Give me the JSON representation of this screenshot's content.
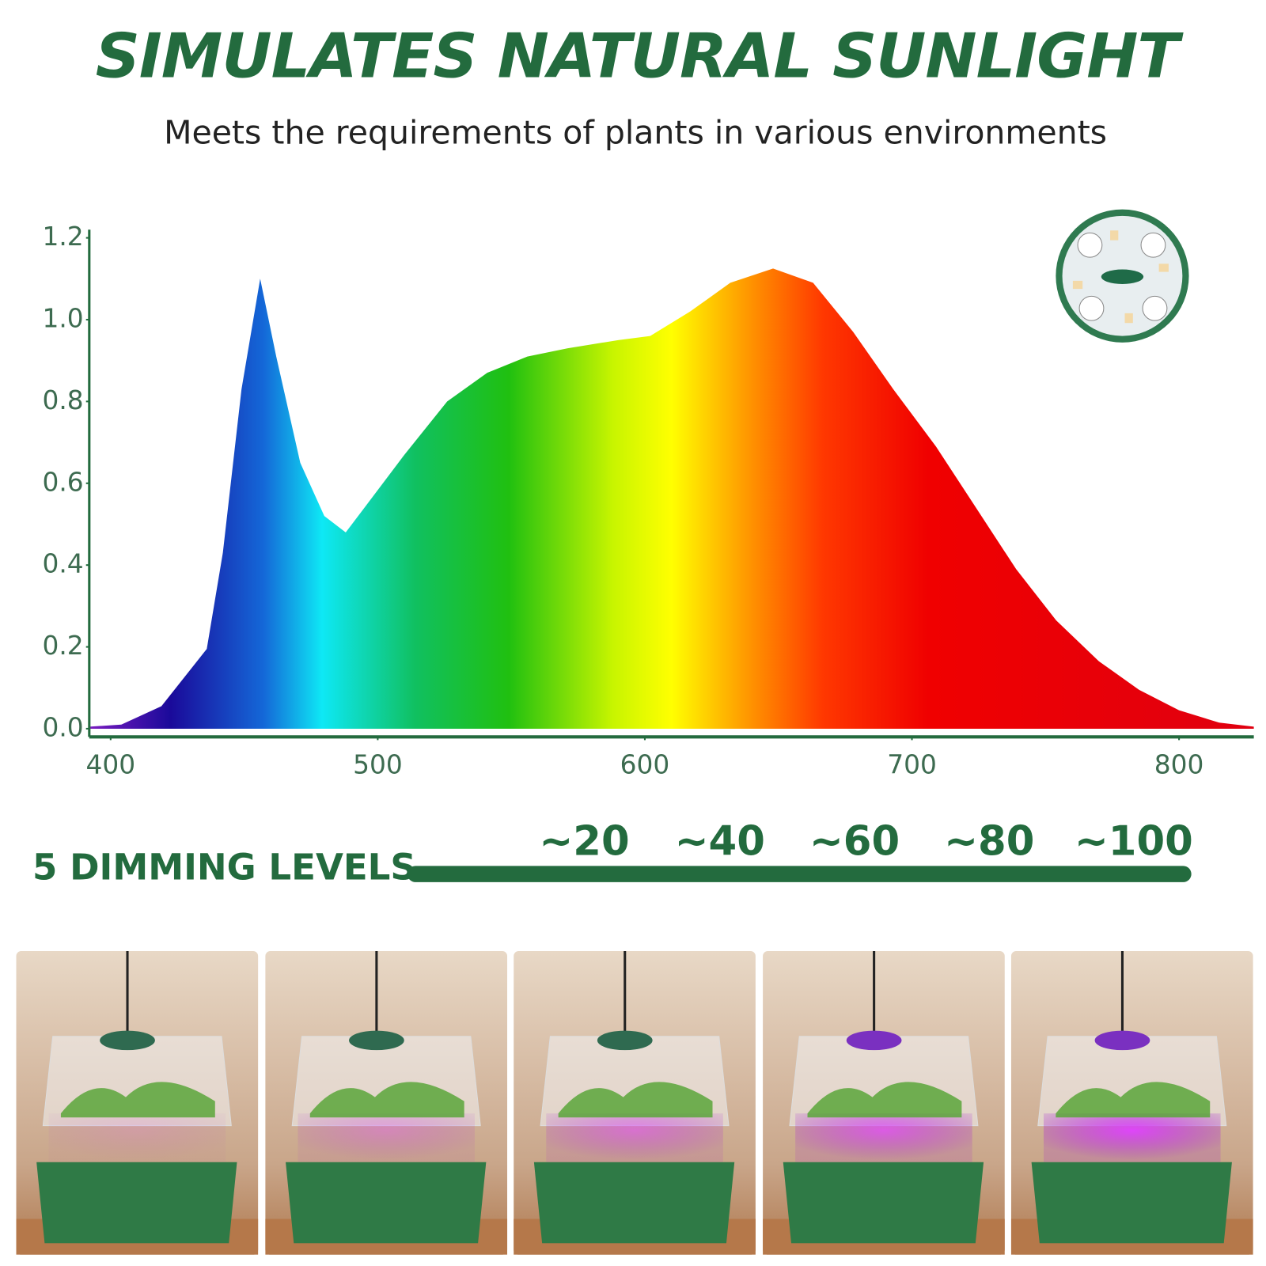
{
  "title": "SIMULATES NATURAL SUNLIGHT",
  "subtitle": "Meets the requirements of plants in various environments",
  "chart_data": {
    "type": "area",
    "x": [
      392,
      404,
      419,
      436,
      442,
      449,
      456,
      462,
      471,
      480,
      488,
      495,
      510,
      526,
      541,
      556,
      571,
      590,
      602,
      617,
      632,
      648,
      663,
      678,
      693,
      709,
      724,
      739,
      754,
      770,
      785,
      800,
      815,
      828
    ],
    "values": [
      0.005,
      0.01,
      0.055,
      0.195,
      0.43,
      0.83,
      1.1,
      0.91,
      0.65,
      0.52,
      0.48,
      0.54,
      0.67,
      0.8,
      0.87,
      0.91,
      0.93,
      0.95,
      0.96,
      1.02,
      1.09,
      1.125,
      1.09,
      0.97,
      0.83,
      0.69,
      0.54,
      0.39,
      0.265,
      0.165,
      0.095,
      0.045,
      0.015,
      0.005
    ],
    "xlim": [
      392,
      828
    ],
    "ylim": [
      -0.02,
      1.22
    ],
    "xticks": [
      400,
      500,
      600,
      700,
      800
    ],
    "yticks": [
      {
        "value": 0,
        "label": "0.0"
      },
      0.2,
      0.4,
      0.6,
      0.8,
      {
        "value": 1,
        "label": "1.0"
      },
      1.2
    ]
  },
  "dimming": {
    "label": "5 DIMMING LEVELS",
    "levels": [
      "~20",
      "~40",
      "~60",
      "~80",
      "~100"
    ]
  }
}
